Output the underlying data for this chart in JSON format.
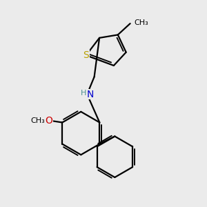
{
  "bg_color": "#ebebeb",
  "atom_colors": {
    "S": "#b8a000",
    "N": "#0000cc",
    "O": "#cc0000",
    "C": "#000000",
    "H": "#4a9090"
  },
  "bond_color": "#000000",
  "bond_width": 1.6,
  "figsize": [
    3.0,
    3.0
  ],
  "dpi": 100
}
